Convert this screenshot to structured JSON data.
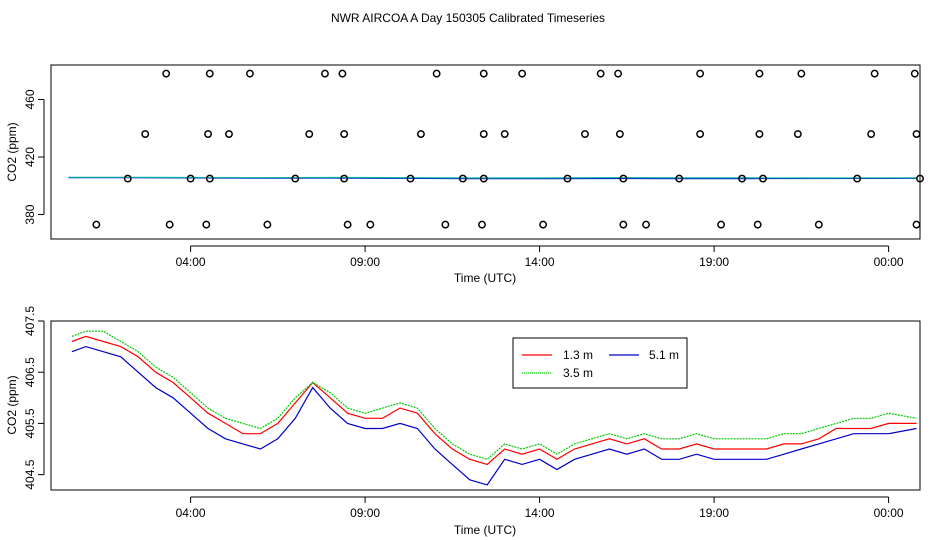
{
  "title": "NWR AIRCOA A  Day 150305  Calibrated Timeseries",
  "colors": {
    "series_13": "#ff0000",
    "series_35": "#00cc00",
    "series_51": "#0000cc",
    "teal": "#00b3a0",
    "axis": "#000000"
  },
  "chart_data": [
    {
      "type": "scatter",
      "xlabel": "Time (UTC)",
      "ylabel": "CO2 (ppm)",
      "x_ticks": [
        "04:00",
        "09:00",
        "14:00",
        "19:00",
        "00:00"
      ],
      "x_tick_hours": [
        4,
        9,
        14,
        19,
        24
      ],
      "xlim_hours": [
        0.0,
        24.9
      ],
      "y_ticks": [
        "380",
        "420",
        "460"
      ],
      "y_tick_values": [
        380,
        420,
        460
      ],
      "ylim": [
        363,
        484
      ],
      "markers": [
        {
          "x": 1.3,
          "y": 373
        },
        {
          "x": 3.4,
          "y": 373
        },
        {
          "x": 4.45,
          "y": 373
        },
        {
          "x": 6.2,
          "y": 373
        },
        {
          "x": 8.5,
          "y": 373
        },
        {
          "x": 9.15,
          "y": 373
        },
        {
          "x": 11.3,
          "y": 373
        },
        {
          "x": 12.35,
          "y": 373
        },
        {
          "x": 14.1,
          "y": 373
        },
        {
          "x": 16.4,
          "y": 373
        },
        {
          "x": 17.05,
          "y": 373
        },
        {
          "x": 19.2,
          "y": 373
        },
        {
          "x": 20.25,
          "y": 373
        },
        {
          "x": 22.0,
          "y": 373
        },
        {
          "x": 24.8,
          "y": 373
        },
        {
          "x": 2.2,
          "y": 405
        },
        {
          "x": 4.0,
          "y": 405
        },
        {
          "x": 4.55,
          "y": 405
        },
        {
          "x": 7.0,
          "y": 405
        },
        {
          "x": 8.4,
          "y": 405
        },
        {
          "x": 10.3,
          "y": 405
        },
        {
          "x": 11.8,
          "y": 405
        },
        {
          "x": 12.4,
          "y": 405
        },
        {
          "x": 14.8,
          "y": 405
        },
        {
          "x": 16.4,
          "y": 405
        },
        {
          "x": 18.0,
          "y": 405
        },
        {
          "x": 19.8,
          "y": 405
        },
        {
          "x": 20.4,
          "y": 405
        },
        {
          "x": 23.1,
          "y": 405
        },
        {
          "x": 24.9,
          "y": 405
        },
        {
          "x": 2.7,
          "y": 436
        },
        {
          "x": 4.5,
          "y": 436
        },
        {
          "x": 5.1,
          "y": 436
        },
        {
          "x": 7.4,
          "y": 436
        },
        {
          "x": 8.4,
          "y": 436
        },
        {
          "x": 10.6,
          "y": 436
        },
        {
          "x": 12.4,
          "y": 436
        },
        {
          "x": 13.0,
          "y": 436
        },
        {
          "x": 15.3,
          "y": 436
        },
        {
          "x": 16.3,
          "y": 436
        },
        {
          "x": 18.6,
          "y": 436
        },
        {
          "x": 20.3,
          "y": 436
        },
        {
          "x": 21.4,
          "y": 436
        },
        {
          "x": 23.5,
          "y": 436
        },
        {
          "x": 24.8,
          "y": 436
        },
        {
          "x": 3.3,
          "y": 478
        },
        {
          "x": 4.55,
          "y": 478
        },
        {
          "x": 5.7,
          "y": 478
        },
        {
          "x": 7.85,
          "y": 478
        },
        {
          "x": 8.35,
          "y": 478
        },
        {
          "x": 11.05,
          "y": 478
        },
        {
          "x": 12.4,
          "y": 478
        },
        {
          "x": 13.5,
          "y": 478
        },
        {
          "x": 15.75,
          "y": 478
        },
        {
          "x": 16.25,
          "y": 478
        },
        {
          "x": 18.6,
          "y": 478
        },
        {
          "x": 20.3,
          "y": 478
        },
        {
          "x": 21.5,
          "y": 478
        },
        {
          "x": 23.6,
          "y": 478
        },
        {
          "x": 24.75,
          "y": 478
        }
      ],
      "series": [
        {
          "color": "#0000cc",
          "x": [
            0.5,
            2,
            4,
            6,
            8,
            10,
            12,
            14,
            16,
            18,
            20,
            22,
            24.8
          ],
          "y": [
            405.6,
            405.7,
            405.5,
            405.3,
            405.4,
            405.2,
            405.0,
            405.0,
            405.1,
            405.0,
            405.0,
            405.1,
            405.2
          ]
        },
        {
          "color": "#00b3a0",
          "x": [
            0.5,
            2,
            4,
            6,
            8,
            10,
            12,
            14,
            16,
            18,
            20,
            22,
            24.8
          ],
          "y": [
            405.9,
            405.9,
            405.8,
            405.6,
            405.8,
            405.6,
            405.4,
            405.4,
            405.6,
            405.5,
            405.5,
            405.4,
            405.5
          ]
        }
      ]
    },
    {
      "type": "line",
      "xlabel": "Time (UTC)",
      "ylabel": "CO2 (ppm)",
      "x_ticks": [
        "04:00",
        "09:00",
        "14:00",
        "19:00",
        "00:00"
      ],
      "x_tick_hours": [
        4,
        9,
        14,
        19,
        24
      ],
      "xlim_hours": [
        0.0,
        24.9
      ],
      "y_ticks": [
        "404.5",
        "405.5",
        "406.5",
        "407.5"
      ],
      "y_tick_values": [
        404.5,
        405.5,
        406.5,
        407.5
      ],
      "ylim": [
        404.2,
        407.5
      ],
      "legend": {
        "position": "top-center",
        "entries": [
          "1.3 m",
          "5.1 m",
          "3.5 m"
        ]
      },
      "series": [
        {
          "name": "1.3 m",
          "color": "#ff0000",
          "x": [
            0.6,
            1.0,
            1.5,
            2.0,
            2.5,
            3.0,
            3.5,
            4.0,
            4.5,
            5.0,
            5.5,
            6.0,
            6.5,
            7.0,
            7.5,
            8.0,
            8.5,
            9.0,
            9.5,
            10.0,
            10.5,
            11.0,
            11.5,
            12.0,
            12.5,
            13.0,
            13.5,
            14.0,
            14.5,
            15.0,
            15.5,
            16.0,
            16.5,
            17.0,
            17.5,
            18.0,
            18.5,
            19.0,
            19.5,
            20.0,
            20.5,
            21.0,
            21.5,
            22.0,
            22.5,
            23.0,
            23.5,
            24.0,
            24.8
          ],
          "y": [
            407.1,
            407.2,
            407.1,
            407.0,
            406.8,
            406.5,
            406.3,
            406.0,
            405.7,
            405.5,
            405.3,
            405.3,
            405.5,
            405.9,
            406.3,
            406.0,
            405.7,
            405.6,
            405.6,
            405.8,
            405.7,
            405.3,
            405.0,
            404.8,
            404.7,
            405.0,
            404.9,
            405.0,
            404.8,
            405.0,
            405.1,
            405.2,
            405.1,
            405.2,
            405.0,
            405.0,
            405.1,
            405.0,
            405.0,
            405.0,
            405.0,
            405.1,
            405.1,
            405.2,
            405.4,
            405.4,
            405.4,
            405.5,
            405.5
          ]
        },
        {
          "name": "5.1 m",
          "color": "#0000cc",
          "x": [
            0.6,
            1.0,
            1.5,
            2.0,
            2.5,
            3.0,
            3.5,
            4.0,
            4.5,
            5.0,
            5.5,
            6.0,
            6.5,
            7.0,
            7.5,
            8.0,
            8.5,
            9.0,
            9.5,
            10.0,
            10.5,
            11.0,
            11.5,
            12.0,
            12.5,
            13.0,
            13.5,
            14.0,
            14.5,
            15.0,
            15.5,
            16.0,
            16.5,
            17.0,
            17.5,
            18.0,
            18.5,
            19.0,
            19.5,
            20.0,
            20.5,
            21.0,
            21.5,
            22.0,
            22.5,
            23.0,
            23.5,
            24.0,
            24.8
          ],
          "y": [
            406.9,
            407.0,
            406.9,
            406.8,
            406.5,
            406.2,
            406.0,
            405.7,
            405.4,
            405.2,
            405.1,
            405.0,
            405.2,
            405.6,
            406.2,
            405.8,
            405.5,
            405.4,
            405.4,
            405.5,
            405.4,
            405.0,
            404.7,
            404.4,
            404.3,
            404.8,
            404.7,
            404.8,
            404.6,
            404.8,
            404.9,
            405.0,
            404.9,
            405.0,
            404.8,
            404.8,
            404.9,
            404.8,
            404.8,
            404.8,
            404.8,
            404.9,
            405.0,
            405.1,
            405.2,
            405.3,
            405.3,
            405.3,
            405.4
          ]
        },
        {
          "name": "3.5 m",
          "color": "#00cc00",
          "x": [
            0.6,
            1.0,
            1.5,
            2.0,
            2.5,
            3.0,
            3.5,
            4.0,
            4.5,
            5.0,
            5.5,
            6.0,
            6.5,
            7.0,
            7.5,
            8.0,
            8.5,
            9.0,
            9.5,
            10.0,
            10.5,
            11.0,
            11.5,
            12.0,
            12.5,
            13.0,
            13.5,
            14.0,
            14.5,
            15.0,
            15.5,
            16.0,
            16.5,
            17.0,
            17.5,
            18.0,
            18.5,
            19.0,
            19.5,
            20.0,
            20.5,
            21.0,
            21.5,
            22.0,
            22.5,
            23.0,
            23.5,
            24.0,
            24.8
          ],
          "y": [
            407.2,
            407.3,
            407.3,
            407.1,
            406.9,
            406.6,
            406.4,
            406.1,
            405.8,
            405.6,
            405.5,
            405.4,
            405.6,
            406.0,
            406.3,
            406.1,
            405.8,
            405.7,
            405.8,
            405.9,
            405.8,
            405.4,
            405.1,
            404.9,
            404.8,
            405.1,
            405.0,
            405.1,
            404.9,
            405.1,
            405.2,
            405.3,
            405.2,
            405.3,
            405.2,
            405.2,
            405.3,
            405.2,
            405.2,
            405.2,
            405.2,
            405.3,
            405.3,
            405.4,
            405.5,
            405.6,
            405.6,
            405.7,
            405.6
          ]
        }
      ]
    }
  ]
}
